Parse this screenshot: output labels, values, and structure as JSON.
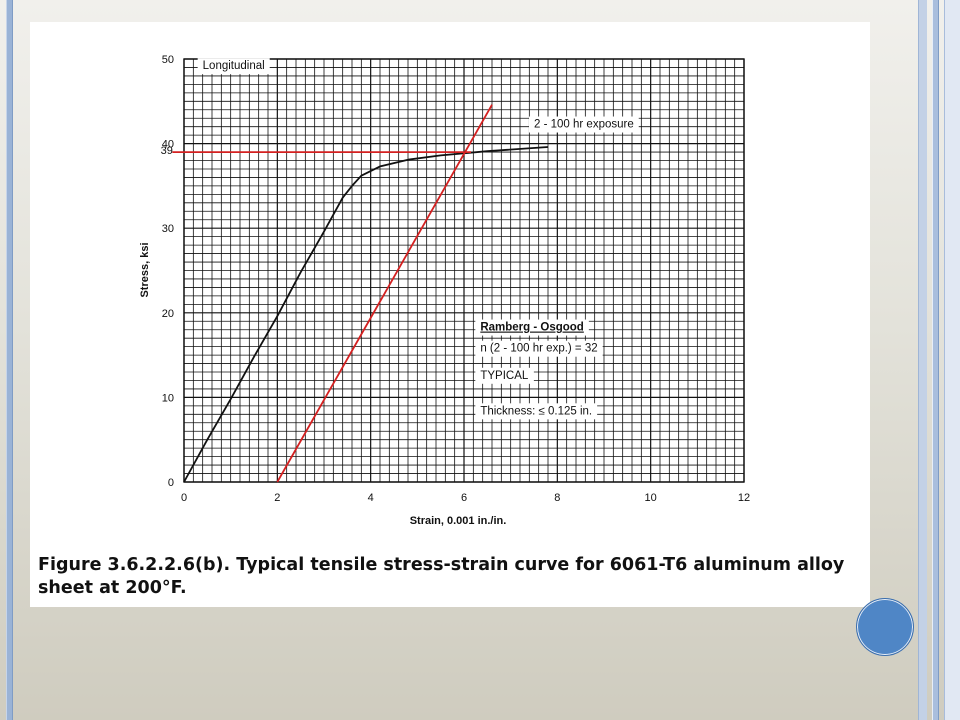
{
  "caption": {
    "line1": "Figure 3.6.2.2.6(b).  Typical tensile stress-strain curve for 6061-T6 aluminum alloy",
    "line2": "sheet at 200°F."
  },
  "chart_data": {
    "type": "line",
    "xlabel": "Strain, 0.001 in./in.",
    "ylabel": "Stress, ksi",
    "xlim": [
      0,
      12
    ],
    "ylim": [
      0,
      50
    ],
    "xticks": [
      0,
      2,
      4,
      6,
      8,
      10,
      12
    ],
    "yticks": [
      0,
      10,
      20,
      30,
      40,
      50
    ],
    "grid": true,
    "grid_minor_x": 0.2,
    "grid_minor_y": 1,
    "series": [
      {
        "color": "#111111",
        "x": [
          0,
          0.5,
          1.0,
          1.5,
          2.0,
          2.5,
          3.0,
          3.4,
          3.6,
          3.8,
          4.2,
          4.8,
          5.5,
          6.5,
          7.8
        ],
        "y": [
          0,
          5.0,
          9.8,
          14.8,
          19.6,
          24.8,
          29.6,
          33.6,
          35.0,
          36.2,
          37.3,
          38.1,
          38.6,
          39.1,
          39.6
        ]
      },
      {
        "color": "#d42020",
        "x": [
          2.0,
          6.6
        ],
        "y": [
          0,
          44.6
        ]
      },
      {
        "color": "#d42020",
        "x": [
          -0.25,
          6.15
        ],
        "y": [
          39,
          39
        ]
      }
    ],
    "annotations": [
      {
        "text": "Longitudinal",
        "x": 0.4,
        "y": 48.8
      },
      {
        "text": "2 - 100 hr exposure",
        "x": 7.5,
        "y": 41.9
      },
      {
        "text": "39",
        "x": -0.5,
        "y": 38.8,
        "color": "#111111"
      },
      {
        "text": "Ramberg - Osgood",
        "x": 6.35,
        "y": 17.9,
        "underline": true
      },
      {
        "text": "n (2 - 100 hr exp.) = 32",
        "x": 6.35,
        "y": 15.4
      },
      {
        "text": "TYPICAL",
        "x": 6.35,
        "y": 12.2
      },
      {
        "text": "Thickness:  ≤ 0.125 in.",
        "x": 6.35,
        "y": 8.0
      }
    ]
  }
}
